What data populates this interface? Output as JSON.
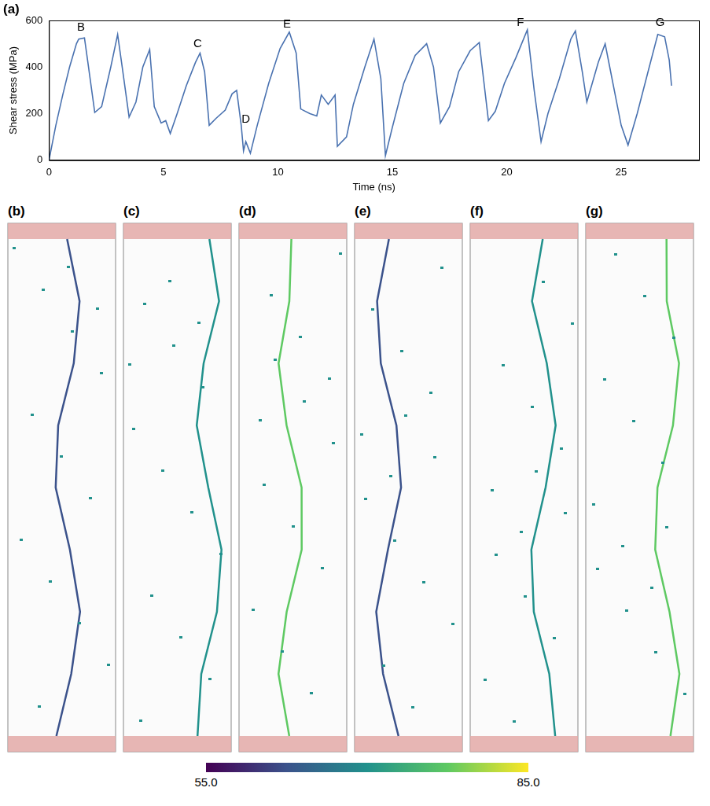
{
  "chart_data": {
    "type": "line",
    "panel": "(a)",
    "x_label": "Time (ns)",
    "y_label": "Shear stress (MPa)",
    "color": "#4a72b0",
    "grid": false,
    "x": [
      0,
      0.3,
      0.6,
      0.9,
      1.2,
      1.3,
      1.55,
      1.7,
      2.0,
      2.3,
      2.7,
      3.0,
      3.2,
      3.5,
      3.8,
      4.1,
      4.4,
      4.6,
      4.9,
      5.1,
      5.3,
      5.6,
      6.0,
      6.4,
      6.6,
      6.8,
      7.0,
      7.3,
      7.7,
      8.0,
      8.2,
      8.4,
      8.5,
      8.6,
      8.8,
      9.1,
      9.6,
      10.1,
      10.5,
      10.8,
      11.0,
      11.4,
      11.7,
      11.9,
      12.2,
      12.5,
      12.6,
      13.0,
      13.3,
      13.8,
      14.2,
      14.5,
      14.7,
      15.0,
      15.5,
      16.0,
      16.5,
      16.8,
      17.1,
      17.5,
      17.9,
      18.4,
      18.8,
      19.2,
      19.5,
      19.9,
      20.4,
      20.9,
      21.2,
      21.5,
      21.8,
      22.3,
      22.8,
      23.0,
      23.3,
      23.5,
      24.0,
      24.3,
      24.5,
      25.0,
      25.3,
      25.7,
      26.2,
      26.6,
      26.9,
      27.1,
      27.2
    ],
    "values": [
      0,
      150,
      280,
      400,
      500,
      520,
      525,
      420,
      205,
      230,
      400,
      540,
      400,
      185,
      250,
      400,
      475,
      230,
      160,
      170,
      115,
      200,
      320,
      420,
      460,
      380,
      150,
      180,
      215,
      285,
      300,
      150,
      40,
      80,
      30,
      150,
      330,
      480,
      550,
      460,
      220,
      200,
      190,
      280,
      240,
      280,
      60,
      100,
      240,
      400,
      520,
      350,
      20,
      140,
      330,
      450,
      500,
      400,
      160,
      230,
      380,
      470,
      505,
      170,
      210,
      330,
      440,
      560,
      300,
      80,
      200,
      350,
      520,
      555,
      380,
      250,
      420,
      500,
      400,
      150,
      65,
      200,
      390,
      540,
      530,
      430,
      320
    ],
    "xlim": [
      0,
      28.4
    ],
    "xticks": [
      0,
      5,
      10,
      15,
      20,
      25
    ],
    "ylim": [
      0,
      600
    ],
    "yticks": [
      0,
      200,
      400,
      600
    ],
    "annotations": [
      {
        "text": "B",
        "x": 1.4,
        "y": 570
      },
      {
        "text": "C",
        "x": 6.5,
        "y": 500
      },
      {
        "text": "D",
        "x": 8.6,
        "y": 175
      },
      {
        "text": "E",
        "x": 10.4,
        "y": 585
      },
      {
        "text": "F",
        "x": 20.6,
        "y": 590
      },
      {
        "text": "G",
        "x": 26.7,
        "y": 590
      }
    ]
  },
  "snapshots": {
    "panels": [
      "(b)",
      "(c)",
      "(d)",
      "(e)",
      "(f)",
      "(g)"
    ],
    "colorbar": {
      "range": [
        55,
        85
      ],
      "ticks": [
        {
          "value": 55,
          "label": "55.0"
        },
        {
          "value": 85,
          "label": "85.0"
        }
      ]
    }
  }
}
